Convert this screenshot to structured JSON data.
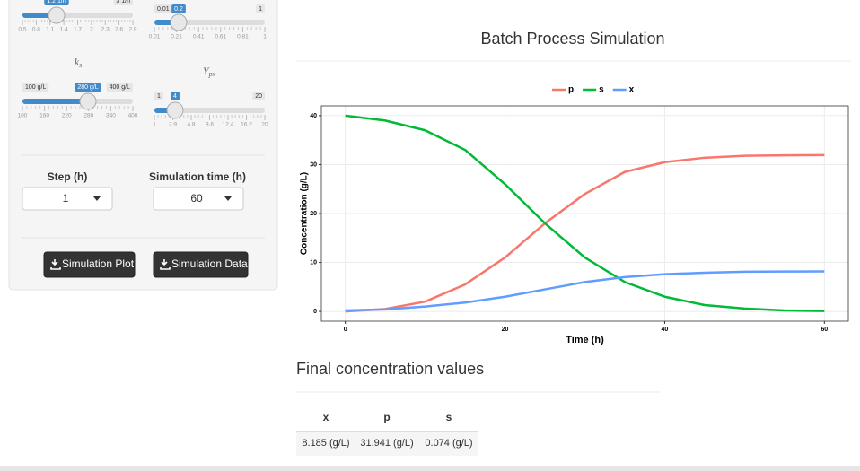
{
  "sidebar": {
    "sliders": [
      {
        "value": "1.2 1/h",
        "max": "3 1/h",
        "ticks": [
          "0.5",
          "0.8",
          "1.1",
          "1.4",
          "1.7",
          "2",
          "2.3",
          "2.6",
          "2.9"
        ]
      },
      {
        "min": "0.01",
        "value": "0.2",
        "max": "1",
        "ticks": [
          "0.01",
          "0.21",
          "0.41",
          "0.61",
          "0.81",
          "1"
        ]
      },
      {
        "label": {
          "symbol": "k",
          "subscript": "s"
        },
        "min": "100 g/L",
        "value": "280 g/L",
        "max": "400 g/L",
        "ticks": [
          "100",
          "160",
          "220",
          "280",
          "340",
          "400"
        ]
      },
      {
        "label": {
          "symbol": "Y",
          "subscript": "px"
        },
        "min": "1",
        "value": "4",
        "max": "20",
        "ticks": [
          "1",
          "2.9",
          "4.8",
          "8.6",
          "12.4",
          "16.2",
          "20"
        ]
      }
    ],
    "selects": [
      {
        "label": "Step (h)",
        "value": "1"
      },
      {
        "label": "Simulation time (h)",
        "value": "60"
      }
    ],
    "buttons": [
      "Simulation Plot",
      "Simulation Data"
    ]
  },
  "chart_data": {
    "type": "line",
    "title": "Batch Process Simulation",
    "x_label": "Time (h)",
    "y_label": "Concentration (g/L)",
    "x": [
      0,
      5,
      10,
      15,
      20,
      25,
      30,
      35,
      40,
      45,
      50,
      55,
      60
    ],
    "series": [
      {
        "name": "p",
        "color": "#F8766D",
        "values": [
          0,
          0.5,
          2,
          5.5,
          11,
          18,
          24,
          28.5,
          30.5,
          31.4,
          31.8,
          31.9,
          31.941
        ]
      },
      {
        "name": "s",
        "color": "#00BA38",
        "values": [
          40,
          39,
          37,
          33,
          26,
          18,
          11,
          6,
          3,
          1.3,
          0.6,
          0.2,
          0.074
        ]
      },
      {
        "name": "x",
        "color": "#619CFF",
        "values": [
          0.2,
          0.4,
          1,
          1.8,
          3,
          4.5,
          6,
          7,
          7.6,
          7.9,
          8.1,
          8.15,
          8.185
        ]
      }
    ],
    "xlim": [
      -3,
      63
    ],
    "ylim": [
      -2,
      42
    ],
    "xticks": [
      0,
      20,
      40,
      60
    ],
    "yticks": [
      0,
      10,
      20,
      30,
      40
    ],
    "grid": true,
    "legend": "top"
  },
  "table": {
    "title": "Final concentration values",
    "columns": [
      "x",
      "p",
      "s"
    ],
    "rows": [
      [
        "8.185 (g/L)",
        "31.941 (g/L)",
        "0.074 (g/L)"
      ]
    ]
  }
}
